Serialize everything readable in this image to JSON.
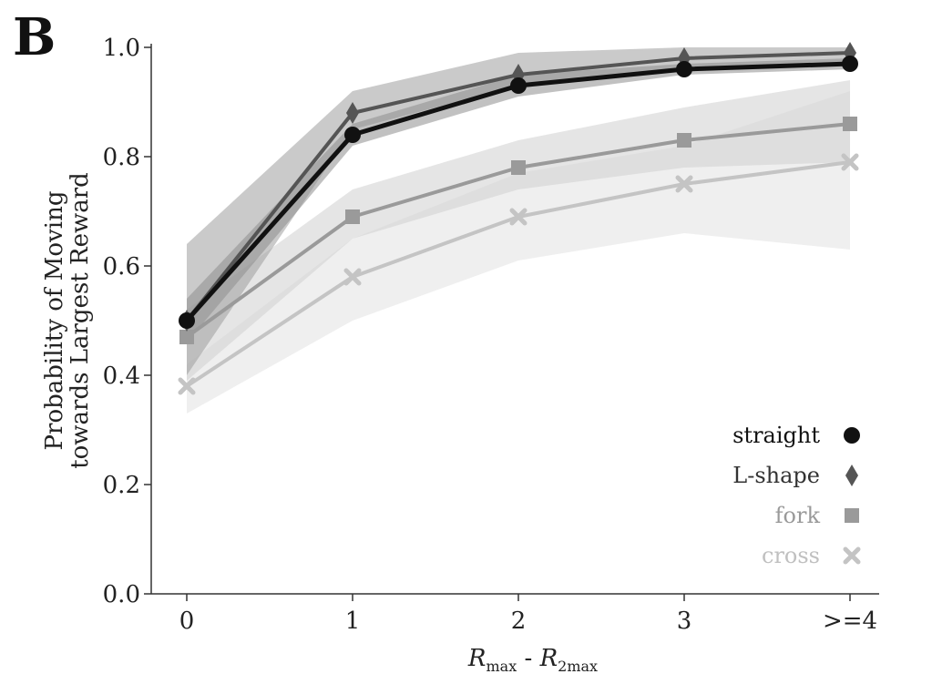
{
  "panel_label": "B",
  "chart_data": {
    "type": "line",
    "categories": [
      "0",
      "1",
      "2",
      "3",
      ">=4"
    ],
    "ylabel_line1": "Probability of Moving",
    "ylabel_line2": "towards Largest Reward",
    "xlabel_main_1": "R",
    "xlabel_sub_1": "max",
    "xlabel_sep": " - ",
    "xlabel_main_2": "R",
    "xlabel_sub_2": "2max",
    "ylim": [
      0.0,
      1.0
    ],
    "yticks": [
      "0.0",
      "0.2",
      "0.4",
      "0.6",
      "0.8",
      "1.0"
    ],
    "ytick_values": [
      0.0,
      0.2,
      0.4,
      0.6,
      0.8,
      1.0
    ],
    "grid": false,
    "legend_position": "bottom-right",
    "series": [
      {
        "name": "cross",
        "marker": "x",
        "color": "#c4c4c4",
        "band": "#e2e2e2",
        "values": [
          0.38,
          0.58,
          0.69,
          0.75,
          0.79
        ],
        "lower": [
          0.33,
          0.5,
          0.61,
          0.66,
          0.63
        ],
        "upper": [
          0.42,
          0.65,
          0.77,
          0.82,
          0.92
        ]
      },
      {
        "name": "fork",
        "marker": "square",
        "color": "#9a9a9a",
        "band": "#cfcfcf",
        "values": [
          0.47,
          0.69,
          0.78,
          0.83,
          0.86
        ],
        "lower": [
          0.39,
          0.65,
          0.74,
          0.78,
          0.79
        ],
        "upper": [
          0.52,
          0.74,
          0.83,
          0.89,
          0.94
        ]
      },
      {
        "name": "L-shape",
        "marker": "diamond",
        "color": "#555555",
        "band": "#9e9e9e",
        "values": [
          0.5,
          0.88,
          0.95,
          0.98,
          0.99
        ],
        "lower": [
          0.4,
          0.85,
          0.93,
          0.96,
          0.97
        ],
        "upper": [
          0.64,
          0.92,
          0.99,
          1.0,
          1.0
        ]
      },
      {
        "name": "straight",
        "marker": "circle",
        "color": "#111111",
        "band": "#8e8e8e",
        "values": [
          0.5,
          0.84,
          0.93,
          0.96,
          0.97
        ],
        "lower": [
          0.46,
          0.82,
          0.91,
          0.95,
          0.96
        ],
        "upper": [
          0.54,
          0.86,
          0.95,
          0.97,
          0.98
        ]
      }
    ],
    "legend_order": [
      "straight",
      "L-shape",
      "fork",
      "cross"
    ]
  }
}
